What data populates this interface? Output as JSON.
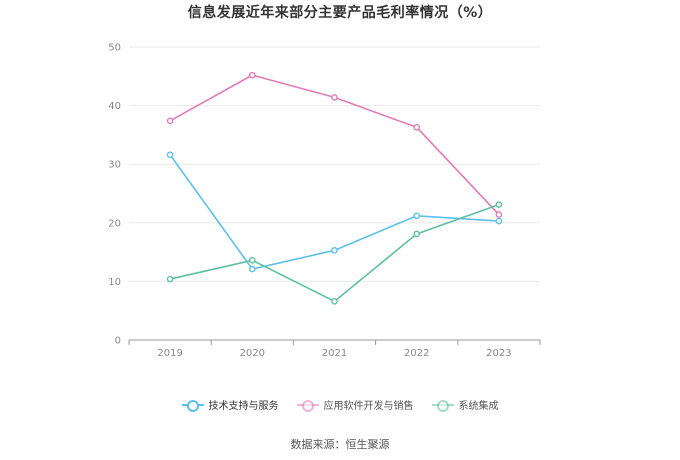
{
  "chart_data": {
    "type": "line",
    "title": "信息发展近年来部分主要产品毛利率情况（%）",
    "categories": [
      "2019",
      "2020",
      "2021",
      "2022",
      "2023"
    ],
    "ylim": [
      0,
      50
    ],
    "yticks": [
      0,
      10,
      20,
      30,
      40,
      50
    ],
    "grid": true,
    "legend_position": "bottom",
    "series": [
      {
        "name": "技术支持与服务",
        "color": "#5bc0eb",
        "values": [
          31.6,
          12.1,
          15.3,
          21.2,
          20.3
        ]
      },
      {
        "name": "应用软件开发与销售",
        "color": "#e07bb7",
        "values": [
          37.4,
          45.2,
          41.4,
          36.3,
          21.4
        ]
      },
      {
        "name": "系统集成",
        "color": "#5cbf9f",
        "values": [
          10.4,
          13.6,
          6.6,
          18.1,
          23.1
        ]
      }
    ]
  },
  "source": "数据来源：恒生聚源"
}
